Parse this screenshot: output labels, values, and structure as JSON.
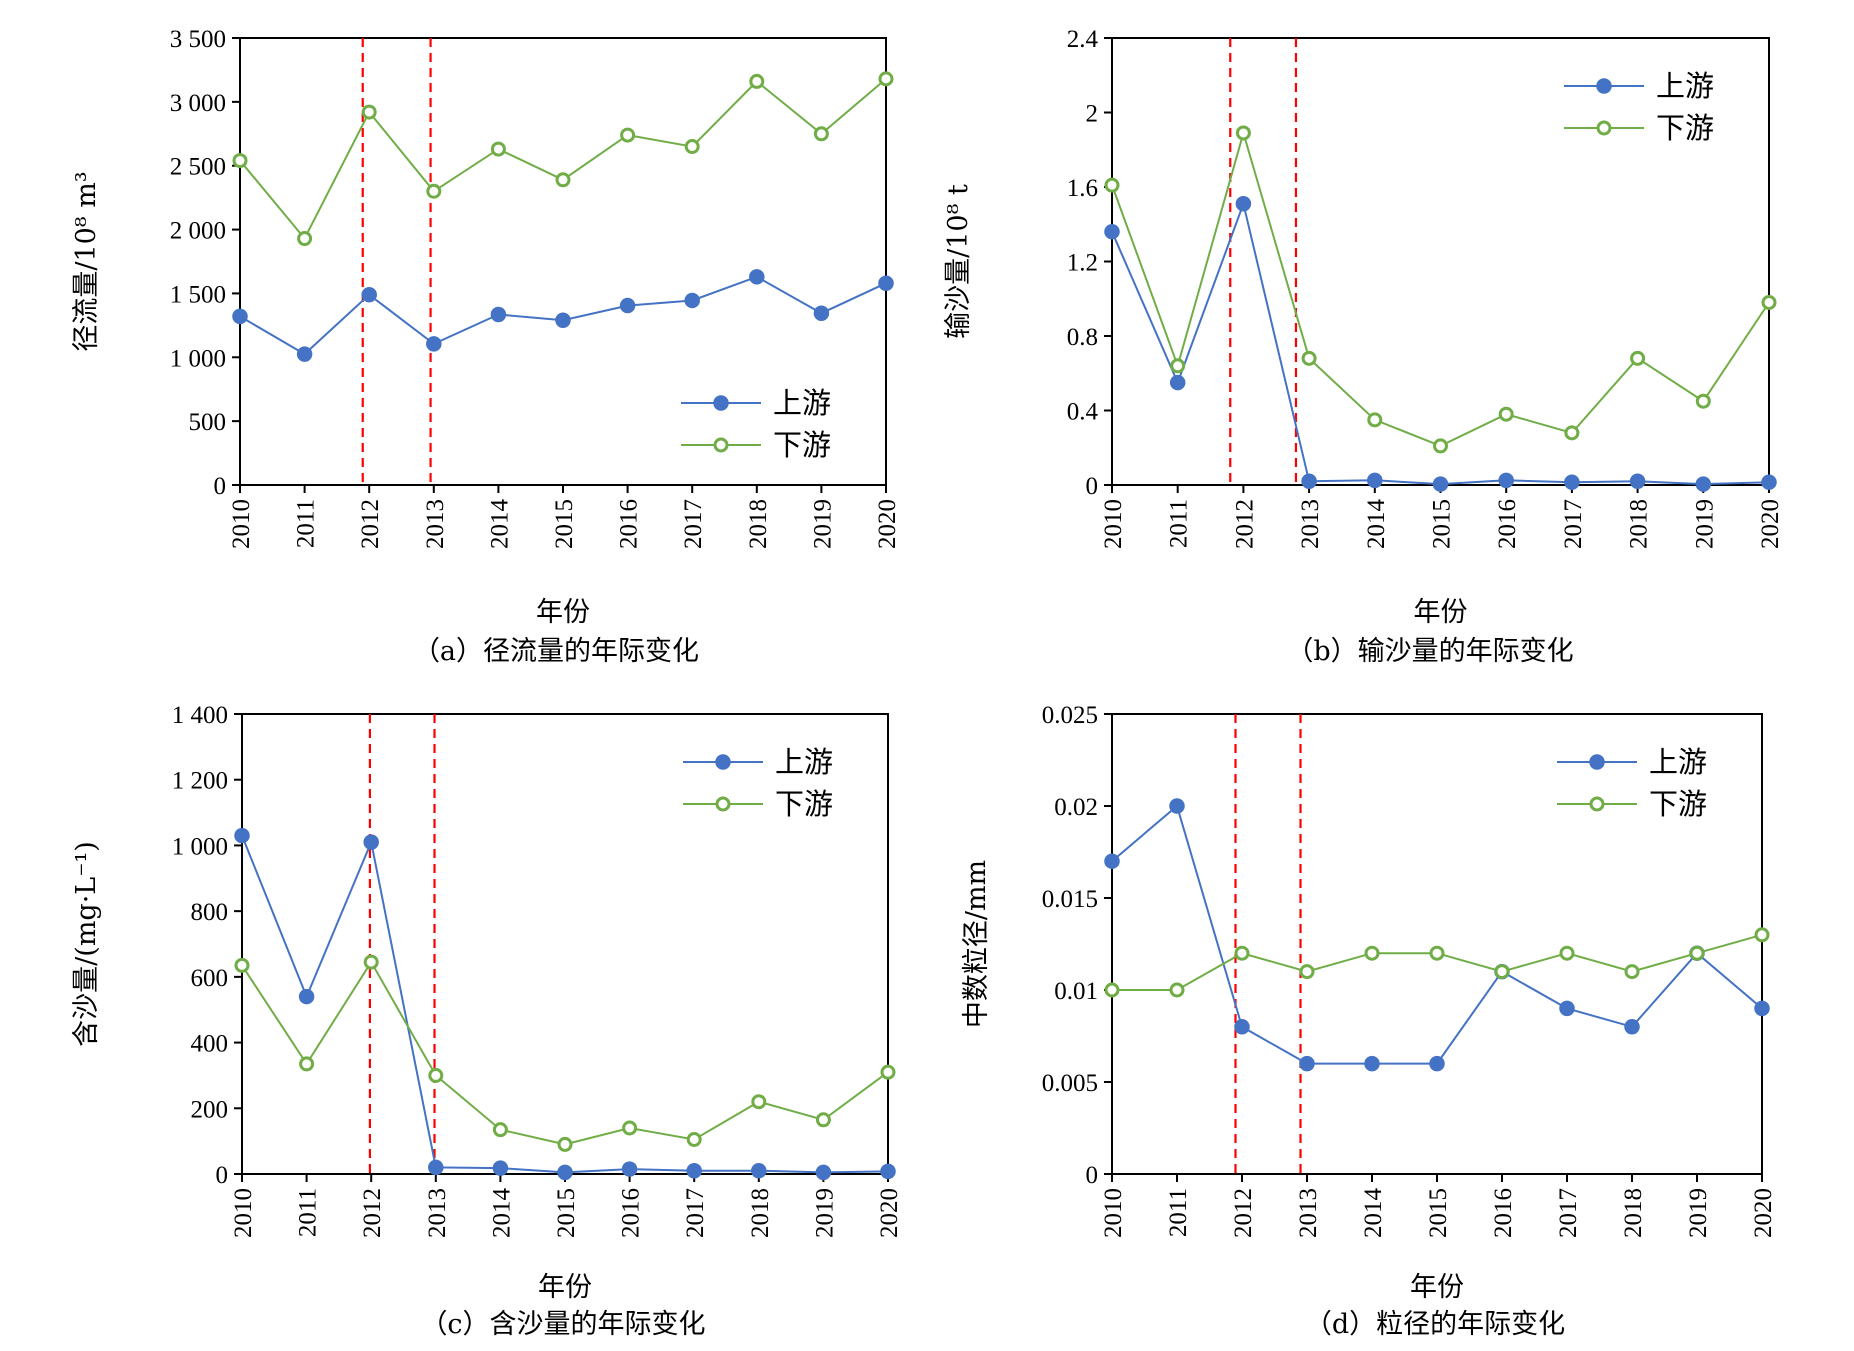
{
  "colors": {
    "upstream": "#4472C4",
    "downstream": "#70AD47",
    "reference": "#FF0000",
    "axis": "#000000"
  },
  "chart_data": [
    {
      "type": "line",
      "caption": "（a）径流量的年际变化",
      "xlabel": "年份",
      "ylabel": "径流量/10⁸ m³",
      "x": [
        2010,
        2011,
        2012,
        2013,
        2014,
        2015,
        2016,
        2017,
        2018,
        2019,
        2020
      ],
      "ylim": [
        0,
        3500
      ],
      "yticks": [
        0,
        500,
        1000,
        1500,
        2000,
        2500,
        3000,
        3500
      ],
      "ytick_labels": [
        "0",
        "500",
        "1 000",
        "1 500",
        "2 000",
        "2 500",
        "3 000",
        "3 500"
      ],
      "reference_lines_x": [
        2011.9,
        2012.95
      ],
      "legend_position": "lower-right",
      "series": [
        {
          "name": "上游",
          "marker": "filled-circle",
          "values": [
            1320,
            1025,
            1490,
            1105,
            1335,
            1290,
            1405,
            1445,
            1630,
            1345,
            1580
          ]
        },
        {
          "name": "下游",
          "marker": "open-circle",
          "values": [
            2540,
            1930,
            2920,
            2300,
            2630,
            2390,
            2740,
            2650,
            3160,
            2750,
            3180
          ]
        }
      ]
    },
    {
      "type": "line",
      "caption": "（b）输沙量的年际变化",
      "xlabel": "年份",
      "ylabel": "输沙量/10⁸ t",
      "x": [
        2010,
        2011,
        2012,
        2013,
        2014,
        2015,
        2016,
        2017,
        2018,
        2019,
        2020
      ],
      "ylim": [
        0,
        2.4
      ],
      "yticks": [
        0,
        0.4,
        0.8,
        1.2,
        1.6,
        2,
        2.4
      ],
      "ytick_labels": [
        "0",
        "0.4",
        "0.8",
        "1.2",
        "1.6",
        "2",
        "2.4"
      ],
      "reference_lines_x": [
        2011.8,
        2012.8
      ],
      "legend_position": "top-right",
      "series": [
        {
          "name": "上游",
          "marker": "filled-circle",
          "values": [
            1.36,
            0.55,
            1.51,
            0.02,
            0.025,
            0.005,
            0.025,
            0.015,
            0.02,
            0.005,
            0.015
          ]
        },
        {
          "name": "下游",
          "marker": "open-circle",
          "values": [
            1.61,
            0.64,
            1.89,
            0.68,
            0.35,
            0.21,
            0.38,
            0.28,
            0.68,
            0.45,
            0.98
          ]
        }
      ]
    },
    {
      "type": "line",
      "caption": "（c）含沙量的年际变化",
      "xlabel": "年份",
      "ylabel": "含沙量/(mg·L⁻¹)",
      "x": [
        2010,
        2011,
        2012,
        2013,
        2014,
        2015,
        2016,
        2017,
        2018,
        2019,
        2020
      ],
      "ylim": [
        0,
        1400
      ],
      "yticks": [
        0,
        200,
        400,
        600,
        800,
        1000,
        1200,
        1400
      ],
      "ytick_labels": [
        "0",
        "200",
        "400",
        "600",
        "800",
        "1 000",
        "1 200",
        "1 400"
      ],
      "reference_lines_x": [
        2011.98,
        2012.98
      ],
      "legend_position": "top-right",
      "series": [
        {
          "name": "上游",
          "marker": "filled-circle",
          "values": [
            1030,
            540,
            1010,
            20,
            18,
            5,
            15,
            10,
            10,
            5,
            8
          ]
        },
        {
          "name": "下游",
          "marker": "open-circle",
          "values": [
            635,
            335,
            645,
            300,
            135,
            90,
            140,
            105,
            220,
            165,
            310
          ]
        }
      ]
    },
    {
      "type": "line",
      "caption": "（d）粒径的年际变化",
      "xlabel": "年份",
      "ylabel": "中数粒径/mm",
      "x": [
        2010,
        2011,
        2012,
        2013,
        2014,
        2015,
        2016,
        2017,
        2018,
        2019,
        2020
      ],
      "ylim": [
        0,
        0.025
      ],
      "yticks": [
        0,
        0.005,
        0.01,
        0.015,
        0.02,
        0.025
      ],
      "ytick_labels": [
        "0",
        "0.005",
        "0.01",
        "0.015",
        "0.02",
        "0.025"
      ],
      "reference_lines_x": [
        2011.9,
        2012.9
      ],
      "legend_position": "top-right",
      "series": [
        {
          "name": "上游",
          "marker": "filled-circle",
          "values": [
            0.017,
            0.02,
            0.008,
            0.006,
            0.006,
            0.006,
            0.011,
            0.009,
            0.008,
            0.012,
            0.009
          ]
        },
        {
          "name": "下游",
          "marker": "open-circle",
          "values": [
            0.01,
            0.01,
            0.012,
            0.011,
            0.012,
            0.012,
            0.011,
            0.012,
            0.011,
            0.012,
            0.013
          ]
        }
      ]
    }
  ]
}
